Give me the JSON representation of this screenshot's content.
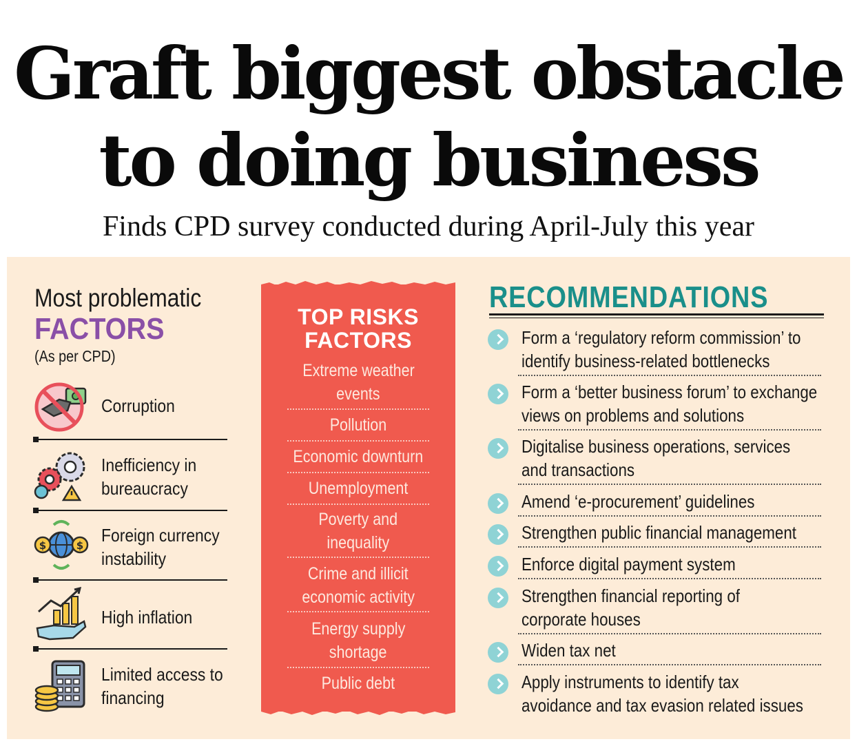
{
  "headline": {
    "line1": "Graft biggest obstacle",
    "line2": "to doing business"
  },
  "subhead": "Finds CPD survey conducted during April-July this year",
  "factors_section": {
    "title_line1": "Most problematic",
    "title_line2": "FACTORS",
    "note": "(As per CPD)",
    "items": [
      {
        "icon": "no-bribe-icon",
        "line1": "Corruption",
        "line2": ""
      },
      {
        "icon": "gears-warning-icon",
        "line1": "Inefficiency in",
        "line2": "bureaucracy"
      },
      {
        "icon": "currency-globe-icon",
        "line1": "Foreign currency",
        "line2": "instability"
      },
      {
        "icon": "rising-chart-hand-icon",
        "line1": "High inflation",
        "line2": ""
      },
      {
        "icon": "calculator-coins-icon",
        "line1": "Limited access to",
        "line2": "financing"
      }
    ]
  },
  "risks_section": {
    "title_line1": "TOP RISKS",
    "title_line2": "FACTORS",
    "items": [
      {
        "line1": "Extreme weather",
        "line2": "events"
      },
      {
        "line1": "Pollution",
        "line2": ""
      },
      {
        "line1": "Economic downturn",
        "line2": ""
      },
      {
        "line1": "Unemployment",
        "line2": ""
      },
      {
        "line1": "Poverty and",
        "line2": "inequality"
      },
      {
        "line1": "Crime and illicit",
        "line2": "economic activity"
      },
      {
        "line1": "Energy supply",
        "line2": "shortage"
      },
      {
        "line1": "Public debt",
        "line2": ""
      }
    ]
  },
  "recommendations_section": {
    "title": "RECOMMENDATIONS",
    "items": [
      {
        "line1": "Form a ‘regulatory reform commission’ to",
        "line2": "identify business-related bottlenecks"
      },
      {
        "line1": "Form a ‘better business forum’ to exchange",
        "line2": "views on problems and solutions"
      },
      {
        "line1": "Digitalise business operations, services",
        "line2": "and transactions"
      },
      {
        "line1": "Amend ‘e-procurement’ guidelines",
        "line2": ""
      },
      {
        "line1": "Strengthen public financial management",
        "line2": ""
      },
      {
        "line1": "Enforce digital payment system",
        "line2": ""
      },
      {
        "line1": "Strengthen financial reporting of",
        "line2": "corporate houses"
      },
      {
        "line1": "Widen tax net",
        "line2": ""
      },
      {
        "line1": "Apply instruments to identify tax",
        "line2": "avoidance and tax evasion related issues"
      }
    ]
  },
  "colors": {
    "panel_bg": "#fdecd8",
    "factors_accent": "#8a4fa7",
    "risks_bg": "#f05a4e",
    "recommendations_accent": "#1a8f8a",
    "bullet": "#8fd3d5"
  }
}
